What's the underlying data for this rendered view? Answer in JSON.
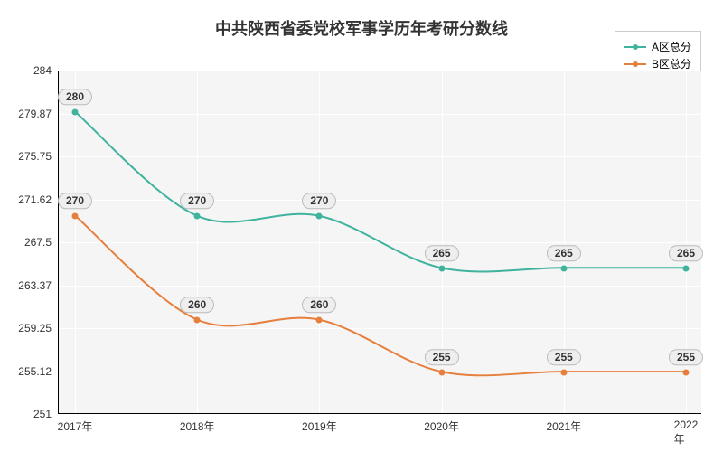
{
  "chart": {
    "type": "line",
    "title": "中共陕西省委党校军事学历年考研分数线",
    "title_fontsize": 18,
    "label_fontsize": 12,
    "background_color": "#ffffff",
    "plot_background_color": "#f5f5f5",
    "grid_color": "#ffffff",
    "axis_color": "#000000",
    "marker_size": 7,
    "line_width": 2,
    "x": {
      "categories": [
        "2017年",
        "2018年",
        "2019年",
        "2020年",
        "2021年",
        "2022年"
      ]
    },
    "y": {
      "min": 251,
      "max": 284,
      "ticks": [
        251,
        255.12,
        259.25,
        263.37,
        267.5,
        271.62,
        275.75,
        279.87,
        284
      ],
      "tick_labels": [
        "251",
        "255.12",
        "259.25",
        "263.37",
        "267.5",
        "271.62",
        "275.75",
        "279.87",
        "284"
      ]
    },
    "series": [
      {
        "name": "A区总分",
        "color": "#3fb39d",
        "values": [
          280,
          270,
          270,
          265,
          265,
          265
        ],
        "value_labels": [
          "280",
          "270",
          "270",
          "265",
          "265",
          "265"
        ]
      },
      {
        "name": "B区总分",
        "color": "#e67e3c",
        "values": [
          270,
          260,
          260,
          255,
          255,
          255
        ],
        "value_labels": [
          "270",
          "260",
          "260",
          "255",
          "255",
          "255"
        ]
      }
    ],
    "legend": {
      "position": "top-right"
    }
  }
}
